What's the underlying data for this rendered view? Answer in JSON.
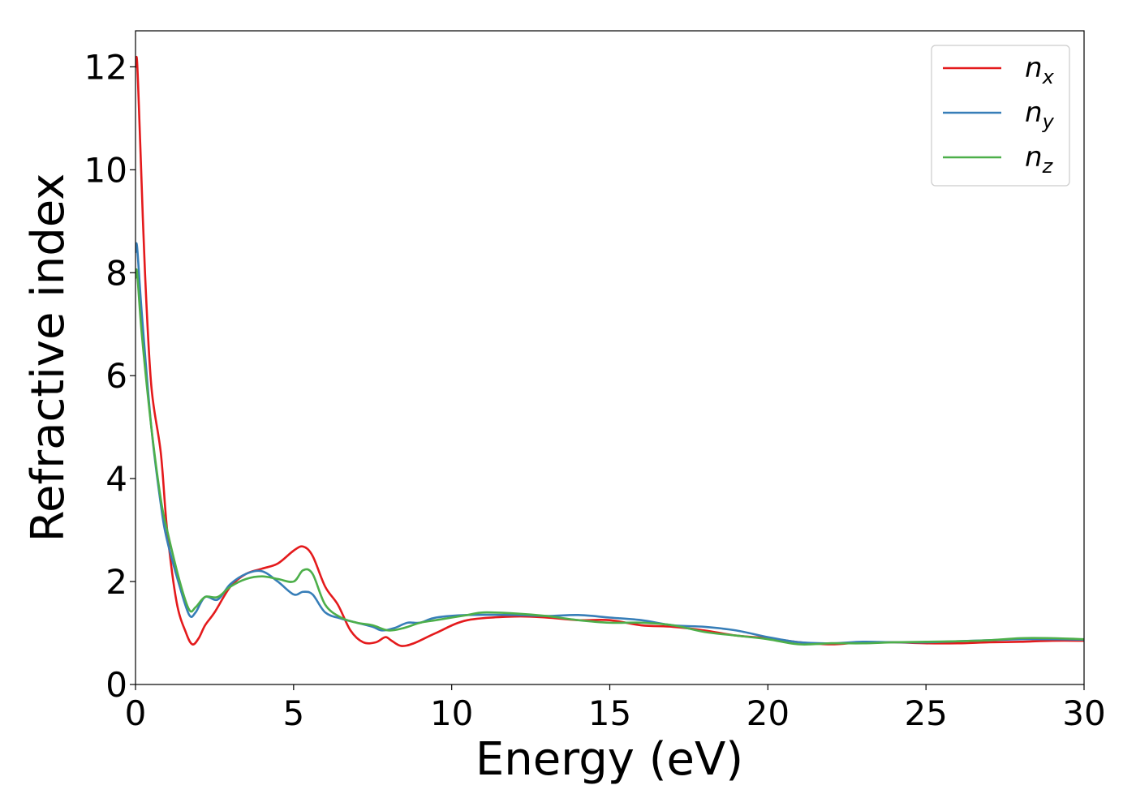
{
  "chart_data": {
    "type": "line",
    "title": "",
    "xlabel": "Energy (eV)",
    "ylabel": "Refractive index",
    "xlim": [
      0,
      30
    ],
    "ylim": [
      0,
      12.7
    ],
    "xticks": [
      0,
      5,
      10,
      15,
      20,
      25,
      30
    ],
    "xtick_labels": [
      "0",
      "5",
      "10",
      "15",
      "20",
      "25",
      "30"
    ],
    "yticks": [
      0,
      2,
      4,
      6,
      8,
      10,
      12
    ],
    "ytick_labels": [
      "0",
      "2",
      "4",
      "6",
      "8",
      "10",
      "12"
    ],
    "grid": false,
    "legend_position": "top-right",
    "series": [
      {
        "name": "n_x",
        "label_base": "n",
        "label_sub": "x",
        "color": "#e41a1c",
        "x": [
          0,
          0.05,
          0.15,
          0.3,
          0.5,
          0.8,
          1.0,
          1.3,
          1.6,
          1.8,
          2.0,
          2.2,
          2.5,
          3.0,
          3.5,
          4.0,
          4.5,
          5.0,
          5.3,
          5.6,
          6.0,
          6.4,
          6.8,
          7.2,
          7.6,
          7.9,
          8.1,
          8.4,
          8.8,
          9.5,
          10.5,
          12,
          13,
          14,
          15,
          16,
          17,
          18,
          19,
          20,
          21,
          22,
          23,
          24,
          25,
          26,
          27,
          28,
          29,
          30
        ],
        "y": [
          12.0,
          12.1,
          10.5,
          8.0,
          5.8,
          4.5,
          3.0,
          1.6,
          1.0,
          0.78,
          0.9,
          1.15,
          1.4,
          1.9,
          2.15,
          2.25,
          2.35,
          2.6,
          2.68,
          2.5,
          1.9,
          1.55,
          1.05,
          0.82,
          0.82,
          0.92,
          0.85,
          0.75,
          0.8,
          1.0,
          1.25,
          1.32,
          1.3,
          1.25,
          1.25,
          1.15,
          1.12,
          1.05,
          0.95,
          0.9,
          0.82,
          0.78,
          0.82,
          0.82,
          0.8,
          0.8,
          0.82,
          0.83,
          0.85,
          0.85
        ]
      },
      {
        "name": "n_y",
        "label_base": "n",
        "label_sub": "y",
        "color": "#377eb8",
        "x": [
          0,
          0.05,
          0.2,
          0.5,
          0.8,
          1.0,
          1.4,
          1.7,
          1.9,
          2.2,
          2.6,
          3.0,
          3.5,
          4.0,
          4.5,
          5.0,
          5.3,
          5.6,
          6.0,
          6.5,
          7.0,
          7.5,
          7.8,
          8.2,
          8.6,
          9.0,
          9.5,
          10.5,
          12,
          13,
          14,
          15,
          16,
          17,
          18,
          19,
          20,
          21,
          22,
          23,
          24,
          25,
          26,
          27,
          28,
          29,
          30
        ],
        "y": [
          8.4,
          8.5,
          7.2,
          5.0,
          3.5,
          2.8,
          1.9,
          1.35,
          1.4,
          1.7,
          1.65,
          1.95,
          2.15,
          2.2,
          2.0,
          1.75,
          1.8,
          1.75,
          1.4,
          1.28,
          1.2,
          1.12,
          1.05,
          1.1,
          1.2,
          1.2,
          1.3,
          1.35,
          1.35,
          1.33,
          1.35,
          1.3,
          1.25,
          1.15,
          1.12,
          1.05,
          0.92,
          0.82,
          0.8,
          0.83,
          0.82,
          0.82,
          0.84,
          0.86,
          0.88,
          0.88,
          0.87
        ]
      },
      {
        "name": "n_z",
        "label_base": "n",
        "label_sub": "z",
        "color": "#4daf4a",
        "x": [
          0,
          0.05,
          0.2,
          0.5,
          0.8,
          1.0,
          1.4,
          1.7,
          1.9,
          2.2,
          2.6,
          3.0,
          3.5,
          4.0,
          4.5,
          5.0,
          5.3,
          5.6,
          6.0,
          6.5,
          7.0,
          7.5,
          8.0,
          8.5,
          9.0,
          9.5,
          10.5,
          11,
          12,
          13,
          14,
          15,
          16,
          17,
          18,
          19,
          20,
          21,
          22,
          23,
          24,
          25,
          26,
          27,
          28,
          29,
          30
        ],
        "y": [
          7.9,
          8.0,
          6.8,
          5.0,
          3.6,
          3.0,
          2.0,
          1.45,
          1.5,
          1.7,
          1.7,
          1.9,
          2.05,
          2.1,
          2.05,
          2.0,
          2.22,
          2.15,
          1.55,
          1.3,
          1.2,
          1.15,
          1.05,
          1.1,
          1.2,
          1.25,
          1.35,
          1.4,
          1.38,
          1.33,
          1.25,
          1.2,
          1.2,
          1.15,
          1.02,
          0.95,
          0.88,
          0.78,
          0.8,
          0.8,
          0.82,
          0.83,
          0.84,
          0.86,
          0.9,
          0.9,
          0.88
        ]
      }
    ]
  }
}
